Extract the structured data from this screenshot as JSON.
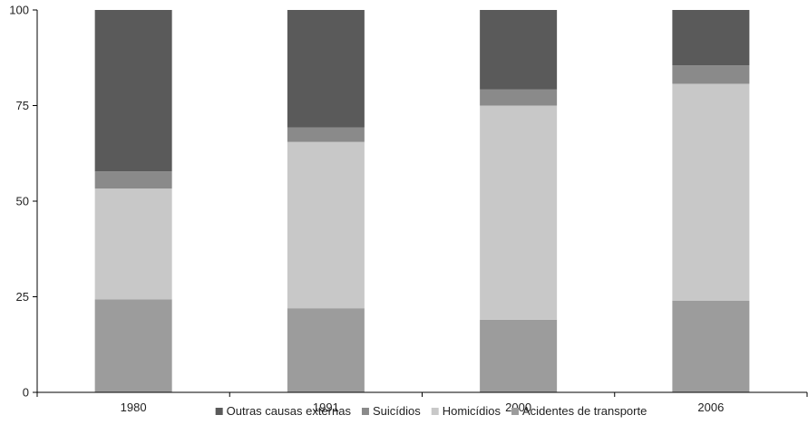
{
  "chart_data": {
    "type": "bar",
    "stacked": true,
    "percent_stacked": true,
    "categories": [
      "1980",
      "1991",
      "2000",
      "2006"
    ],
    "series": [
      {
        "name": "Acidentes de transporte",
        "values": [
          24.3,
          22.0,
          19.0,
          24.0
        ],
        "color": "#9c9c9c"
      },
      {
        "name": "Homicídios",
        "values": [
          29.0,
          43.5,
          56.0,
          56.7
        ],
        "color": "#c8c8c8"
      },
      {
        "name": "Suicídios",
        "values": [
          4.5,
          3.8,
          4.2,
          4.8
        ],
        "color": "#8a8a8a"
      },
      {
        "name": "Outras causas externas",
        "values": [
          42.2,
          30.7,
          20.8,
          14.5
        ],
        "color": "#5a5a5a"
      }
    ],
    "legend_order": [
      "Outras causas externas",
      "Suicídios",
      "Homicídios",
      "Acidentes de transporte"
    ],
    "title": "",
    "xlabel": "",
    "ylabel": "",
    "ylim": [
      0,
      100
    ],
    "yticks": [
      "0",
      "25",
      "50",
      "75",
      "100"
    ],
    "grid": false,
    "legend_position": "bottom"
  }
}
